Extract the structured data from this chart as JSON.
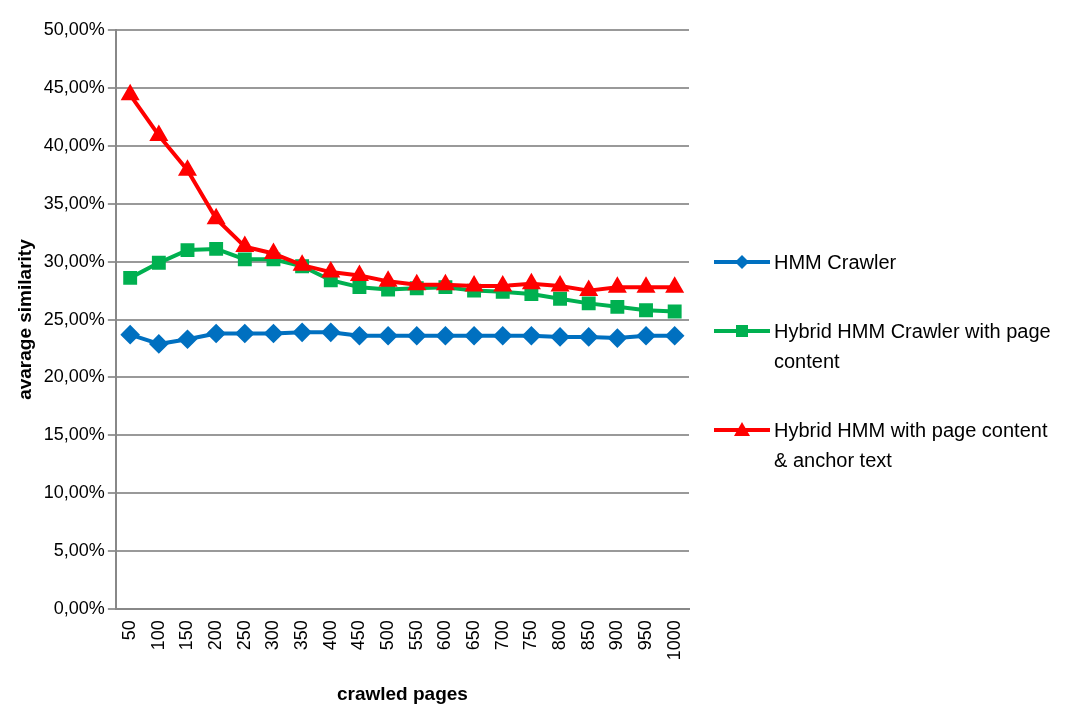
{
  "chart_data": {
    "type": "line",
    "xlabel": "crawled pages",
    "ylabel": "avarage similarity",
    "categories": [
      "50",
      "100",
      "150",
      "200",
      "250",
      "300",
      "350",
      "400",
      "450",
      "500",
      "550",
      "600",
      "650",
      "700",
      "750",
      "800",
      "850",
      "900",
      "950",
      "1000"
    ],
    "ylim": [
      0,
      50
    ],
    "yticks": [
      {
        "value": 0,
        "label": "0,00%"
      },
      {
        "value": 5,
        "label": "5,00%"
      },
      {
        "value": 10,
        "label": "10,00%"
      },
      {
        "value": 15,
        "label": "15,00%"
      },
      {
        "value": 20,
        "label": "20,00%"
      },
      {
        "value": 25,
        "label": "25,00%"
      },
      {
        "value": 30,
        "label": "30,00%"
      },
      {
        "value": 35,
        "label": "35,00%"
      },
      {
        "value": 40,
        "label": "40,00%"
      },
      {
        "value": 45,
        "label": "45,00%"
      },
      {
        "value": 50,
        "label": "50,00%"
      }
    ],
    "grid": "y",
    "legend": "right",
    "series": [
      {
        "name": "HMM Crawler",
        "color": "#0070c0",
        "marker": "diamond",
        "values": [
          23.7,
          22.9,
          23.3,
          23.8,
          23.8,
          23.8,
          23.9,
          23.9,
          23.6,
          23.6,
          23.6,
          23.6,
          23.6,
          23.6,
          23.6,
          23.5,
          23.5,
          23.4,
          23.6,
          23.6
        ]
      },
      {
        "name": "Hybrid HMM Crawler with page content",
        "color": "#00b050",
        "marker": "square",
        "values": [
          28.6,
          29.9,
          31.0,
          31.1,
          30.2,
          30.2,
          29.6,
          28.4,
          27.8,
          27.6,
          27.7,
          27.8,
          27.5,
          27.4,
          27.2,
          26.8,
          26.4,
          26.1,
          25.8,
          25.7
        ]
      },
      {
        "name": "Hybrid HMM with page content & anchor text",
        "color": "#ff0000",
        "marker": "triangle",
        "values": [
          44.4,
          40.9,
          37.9,
          33.7,
          31.3,
          30.7,
          29.7,
          29.1,
          28.8,
          28.3,
          28.0,
          28.0,
          27.9,
          27.9,
          28.1,
          27.9,
          27.5,
          27.8,
          27.8,
          27.8
        ]
      }
    ]
  }
}
